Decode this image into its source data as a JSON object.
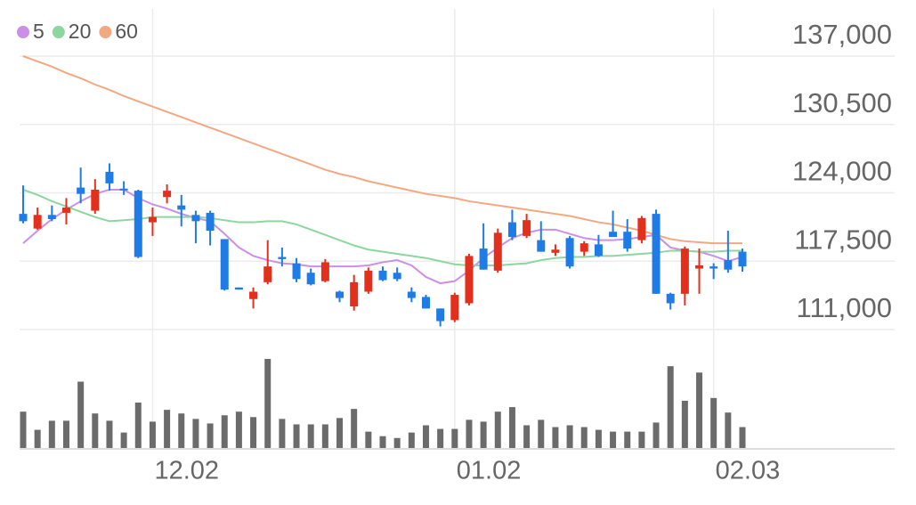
{
  "chart_data": {
    "type": "candlestick",
    "categories": [
      null,
      null,
      null,
      null,
      null,
      null,
      null,
      null,
      null,
      "12.02",
      null,
      null,
      null,
      null,
      null,
      null,
      null,
      null,
      null,
      null,
      null,
      null,
      null,
      null,
      null,
      null,
      null,
      null,
      null,
      null,
      "01.02",
      null,
      null,
      null,
      null,
      null,
      null,
      null,
      null,
      null,
      null,
      null,
      null,
      null,
      null,
      null,
      null,
      null,
      "02.03",
      null,
      null
    ],
    "open": [
      122000,
      120600,
      121900,
      122100,
      124500,
      122300,
      126000,
      124400,
      124200,
      121200,
      123600,
      122800,
      121900,
      122100,
      119600,
      115000,
      113900,
      115500,
      117900,
      117300,
      116400,
      115600,
      114600,
      113200,
      114600,
      116600,
      116400,
      114600,
      114100,
      113000,
      111900,
      113500,
      118700,
      116600,
      121200,
      119900,
      119500,
      118300,
      119700,
      118400,
      119100,
      120300,
      120300,
      119500,
      122000,
      114400,
      114400,
      116800,
      117000,
      117600,
      118400
    ],
    "high": [
      124700,
      122600,
      122800,
      123500,
      126400,
      125300,
      126800,
      125100,
      124300,
      122600,
      124800,
      123800,
      122300,
      122300,
      119600,
      115000,
      115000,
      119500,
      118800,
      117800,
      116800,
      117700,
      114700,
      116200,
      116900,
      117000,
      116900,
      115000,
      114300,
      113000,
      114500,
      118200,
      121100,
      120600,
      122400,
      122000,
      121300,
      119100,
      119900,
      119400,
      120000,
      122300,
      121500,
      121800,
      122400,
      114500,
      118900,
      118700,
      117300,
      120400,
      118700
    ],
    "low": [
      121100,
      120500,
      121300,
      121000,
      123000,
      122000,
      124200,
      123800,
      117800,
      119900,
      123000,
      120800,
      119200,
      119000,
      114700,
      114800,
      113000,
      115300,
      117000,
      115500,
      115200,
      115500,
      113600,
      112800,
      114400,
      115600,
      115600,
      113600,
      113000,
      111300,
      111700,
      113300,
      116700,
      116400,
      119500,
      119700,
      118400,
      118000,
      116800,
      118000,
      117900,
      119900,
      118400,
      119200,
      114400,
      112900,
      113300,
      114400,
      115800,
      116400,
      116500
    ],
    "close": [
      121300,
      121900,
      121500,
      122600,
      123900,
      124300,
      124900,
      124300,
      117900,
      121700,
      124200,
      122400,
      121300,
      120400,
      114800,
      114800,
      114600,
      117000,
      117700,
      115800,
      115300,
      117400,
      114000,
      115500,
      116600,
      115700,
      115800,
      114000,
      113000,
      111800,
      114300,
      118000,
      116700,
      120200,
      119800,
      121400,
      118400,
      118600,
      117000,
      119200,
      118000,
      119800,
      118700,
      121600,
      114400,
      113500,
      118700,
      117100,
      116800,
      116700,
      117000
    ],
    "up_color": "#e3301c",
    "down_color": "#1f7be6",
    "series": [
      {
        "name": "5",
        "color": "#cc8fe8",
        "values": [
          119200,
          120400,
          121500,
          122400,
          123200,
          123900,
          124300,
          124300,
          123500,
          122900,
          122500,
          122000,
          121600,
          121300,
          120100,
          118800,
          118000,
          117600,
          117300,
          117200,
          117000,
          117000,
          117000,
          117000,
          117100,
          117400,
          117600,
          117100,
          116000,
          115400,
          115600,
          116600,
          117800,
          118800,
          119700,
          120200,
          120500,
          120500,
          120100,
          119700,
          119500,
          119500,
          119600,
          119800,
          120000,
          118800,
          118500,
          118400,
          118000,
          117500,
          117900
        ]
      },
      {
        "name": "20",
        "color": "#8dd6a0",
        "values": [
          124300,
          123800,
          123200,
          122700,
          122200,
          121700,
          121300,
          121400,
          121500,
          121700,
          121700,
          121700,
          121700,
          121600,
          121400,
          121200,
          121200,
          121300,
          121300,
          121000,
          120500,
          120000,
          119500,
          119000,
          118600,
          118400,
          118200,
          118000,
          117800,
          117500,
          117200,
          117100,
          117100,
          117100,
          117200,
          117300,
          117600,
          117800,
          117900,
          117900,
          118000,
          118000,
          118100,
          118200,
          118300,
          118500,
          118500,
          118400,
          118400,
          118500,
          118500
        ]
      },
      {
        "name": "60",
        "color": "#f4a882",
        "values": [
          137000,
          136500,
          136000,
          135400,
          134900,
          134300,
          133800,
          133200,
          132700,
          132200,
          131700,
          131200,
          130700,
          130200,
          129700,
          129200,
          128700,
          128200,
          127700,
          127200,
          126700,
          126200,
          125800,
          125500,
          125100,
          124800,
          124500,
          124200,
          123900,
          123700,
          123500,
          123200,
          123000,
          122800,
          122600,
          122400,
          122200,
          122000,
          121800,
          121500,
          121200,
          121000,
          120700,
          120400,
          120000,
          119600,
          119400,
          119300,
          119200,
          119200,
          119200
        ]
      }
    ],
    "volume": {
      "color": "#6b6b6b",
      "values": [
        40,
        20,
        30,
        30,
        73,
        38,
        30,
        17,
        50,
        29,
        42,
        38,
        32,
        27,
        36,
        40,
        34,
        98,
        32,
        26,
        26,
        26,
        33,
        43,
        18,
        13,
        11,
        17,
        25,
        21,
        21,
        31,
        29,
        40,
        45,
        25,
        31,
        23,
        25,
        23,
        20,
        18,
        18,
        18,
        28,
        90,
        52,
        83,
        55,
        39,
        23
      ]
    },
    "ylim": [
      111000,
      137000
    ],
    "yticks": [
      {
        "value": 137000,
        "label": "137,000"
      },
      {
        "value": 130500,
        "label": "130,500"
      },
      {
        "value": 124000,
        "label": "124,000"
      },
      {
        "value": 117500,
        "label": "117,500"
      },
      {
        "value": 111000,
        "label": "111,000"
      }
    ],
    "grid": true
  }
}
